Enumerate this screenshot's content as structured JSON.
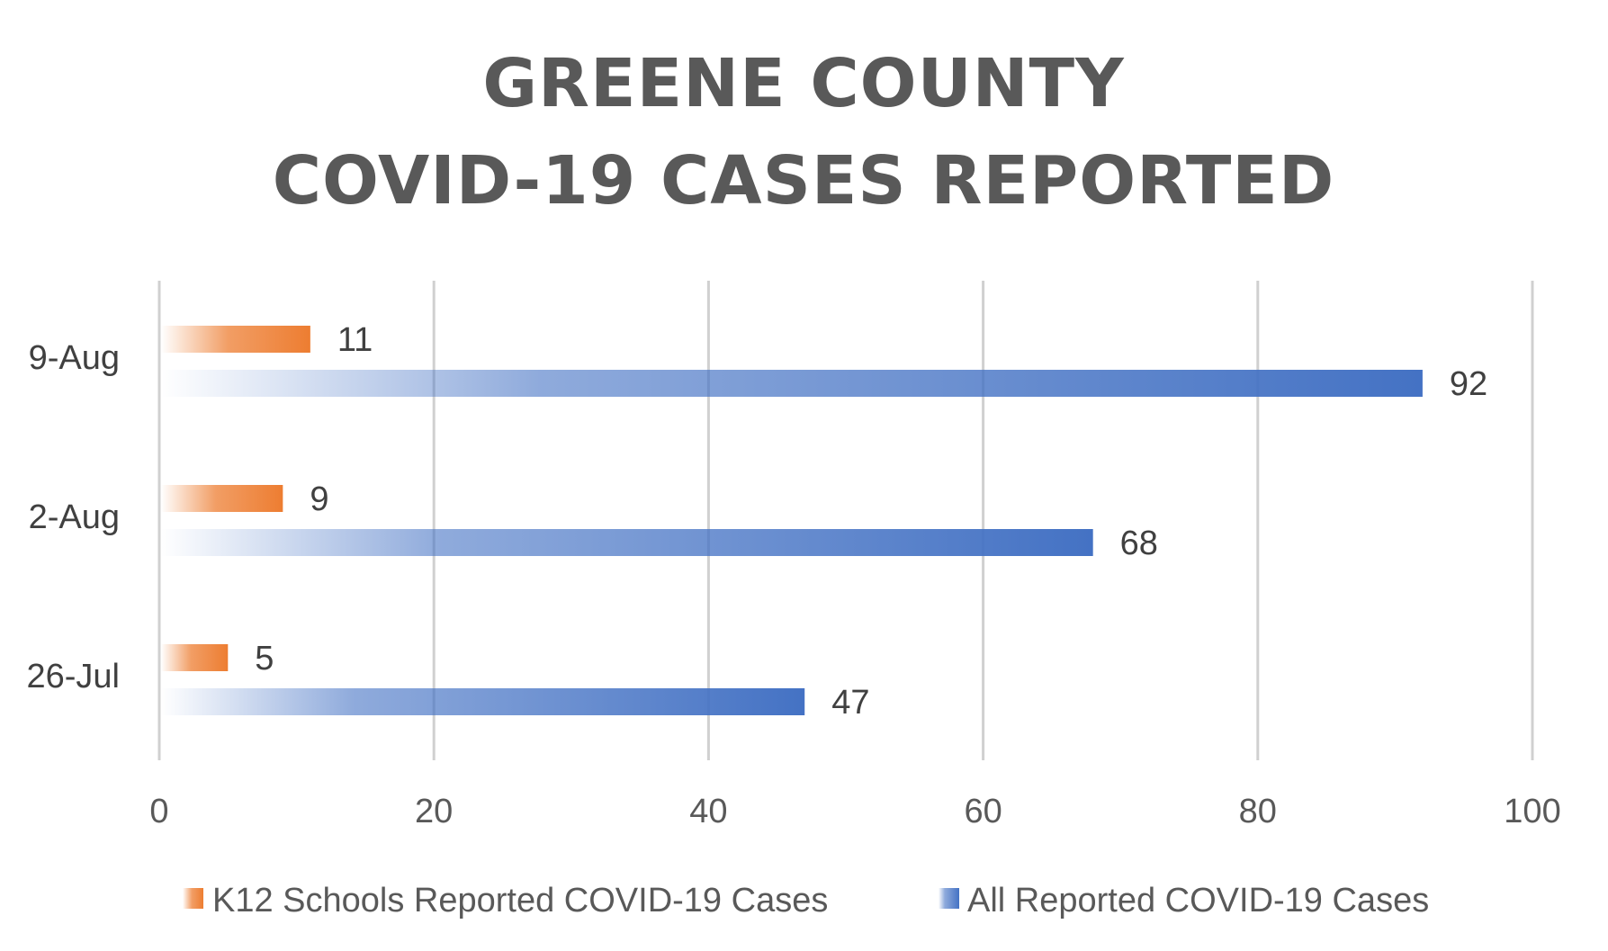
{
  "chart_data": {
    "type": "bar",
    "orientation": "horizontal",
    "title": "GREENE COUNTY\nCOVID-19 CASES REPORTED",
    "title_lines": [
      "GREENE COUNTY",
      "COVID-19 CASES REPORTED"
    ],
    "categories": [
      "9-Aug",
      "2-Aug",
      "26-Jul"
    ],
    "series": [
      {
        "name": "K12 Schools Reported COVID-19 Cases",
        "color": "#ED7D31",
        "values": [
          11,
          9,
          5
        ]
      },
      {
        "name": "All Reported COVID-19 Cases",
        "color": "#4472C4",
        "values": [
          92,
          68,
          47
        ]
      }
    ],
    "xlim": [
      0,
      100
    ],
    "x_ticks": [
      0,
      20,
      40,
      60,
      80,
      100
    ],
    "xlabel": "",
    "ylabel": "",
    "grid": true,
    "legend_position": "bottom",
    "data_labels": true
  }
}
